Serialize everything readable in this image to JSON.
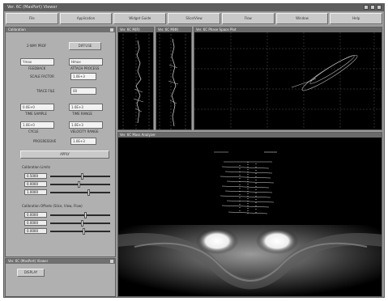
{
  "window": {
    "title": "Ver. 6C (MasPort) Viewer"
  },
  "menu": {
    "items": [
      "File",
      "Application",
      "Widget Guide",
      "Slice/View",
      "Flow",
      "Window",
      "Help"
    ]
  },
  "calibration_panel": {
    "title": "Calibration",
    "label_top": "2-WAY PROF",
    "button_top": "DIFFUSE",
    "field1": "Ymax",
    "field1b": "Hmax",
    "note1": "FEEDBACK",
    "note1b": "ATTACH PROCESS",
    "row_a_label": "SCALE FACTOR",
    "row_a_value": "1.0E+3",
    "row_b_label": "TRACE FILE",
    "row_b_value": "00",
    "pair1_a": "0.0E+0",
    "pair1_b": "1.0E+3",
    "pair1_cap_a": "TIME SAMPLE",
    "pair1_cap_b": "TIME RANGE",
    "pair2_a": "1.0E+0",
    "pair2_b": "1.0E+3",
    "pair2_cap_a": "CYCLE",
    "pair2_cap_b": "VELOCITY RANGE",
    "row_c_label": "PROGRESSIVE",
    "row_c_value": "1.0E+3",
    "apply_button": "APPLY",
    "sec1_label": "Calibration Limits",
    "sec1_rows": [
      "0.5000",
      "0.0000",
      "1.0000"
    ],
    "sec2_label": "Calibration Offsets (Slice, View, Flow)",
    "sec2_rows": [
      "0.0000",
      "0.0000",
      "0.0000"
    ]
  },
  "side_panel": {
    "title": "Ver. 6C (MasPort) Viewer",
    "button": "DISPLAY"
  },
  "views": {
    "strip1_title": "Ver. 6C M(R)",
    "strip2_title": "Ver. 6C M(Φ)",
    "plot_title": "Ver. 6C Phase Space Plot",
    "image_title": "Ver. 6C Mass Analyzer"
  }
}
